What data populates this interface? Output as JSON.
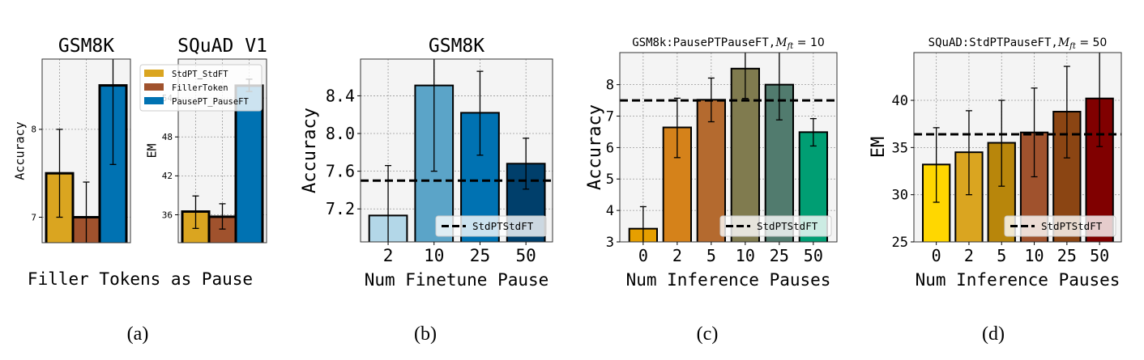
{
  "figure": {
    "panel_a_xlabel": "Filler Tokens as Pause",
    "captions": [
      "(a)",
      "(b)",
      "(c)",
      "(d)"
    ],
    "panel_a_legend": [
      {
        "label": "StdPT_StdFT",
        "color": "#DAA520"
      },
      {
        "label": "FillerToken",
        "color": "#A0522D"
      },
      {
        "label": "PausePT_PauseFT",
        "color": "#0072B2"
      }
    ]
  },
  "chart_data": [
    {
      "type": "bar",
      "title": "GSM8K",
      "ylabel": "Accuracy",
      "xlabel": "",
      "categories": [
        "StdPT_StdFT",
        "FillerToken",
        "PausePT_PauseFT"
      ],
      "show_xticks": false,
      "values": [
        7.5,
        7.0,
        8.5
      ],
      "err_low": [
        7.0,
        6.6,
        7.6
      ],
      "err_high": [
        8.0,
        7.4,
        9.4
      ],
      "ylim": [
        6.71,
        8.8
      ],
      "yticks": [
        "7",
        "8"
      ],
      "colors": [
        "#DAA520",
        "#A0522D",
        "#0072B2"
      ],
      "grid": true
    },
    {
      "type": "bar",
      "title": "SQuAD V1",
      "ylabel": "EM",
      "xlabel": "",
      "categories": [
        "StdPT_StdFT",
        "FillerToken",
        "PausePT_PauseFT"
      ],
      "show_xticks": false,
      "values": [
        36.5,
        35.7,
        55.9
      ],
      "err_low": [
        33.9,
        33.8,
        55.0
      ],
      "err_high": [
        38.9,
        37.7,
        56.9
      ],
      "ylim": [
        31.7,
        60
      ],
      "yticks": [
        "36",
        "42",
        "48",
        "54"
      ],
      "colors": [
        "#DAA520",
        "#A0522D",
        "#0072B2"
      ],
      "grid": true
    },
    {
      "type": "bar",
      "title": "GSM8K",
      "ylabel": "Accuracy",
      "xlabel": "Num Finetune Pause",
      "categories": [
        "2",
        "10",
        "25",
        "50"
      ],
      "show_xticks": true,
      "values": [
        7.13,
        8.51,
        8.22,
        7.68
      ],
      "err_low": [
        6.6,
        7.6,
        7.77,
        7.41
      ],
      "err_high": [
        7.66,
        9.4,
        8.66,
        7.95
      ],
      "ylim": [
        6.85,
        8.79
      ],
      "yticks": [
        "7.2",
        "7.6",
        "8.0",
        "8.4"
      ],
      "colors": [
        "#B3D7E8",
        "#5BA4C8",
        "#0072B2",
        "#003F6B"
      ],
      "baseline": {
        "label": "StdPTStdFT",
        "value": 7.5
      },
      "legend": "bottom-right",
      "grid": true
    },
    {
      "type": "bar",
      "title_prefix": "GSM8k:PausePTPauseFT,",
      "title_var": "M",
      "title_sub": "ft",
      "title_rest": " = 10",
      "ylabel": "Accuracy",
      "xlabel": "Num Inference Pauses",
      "categories": [
        "0",
        "2",
        "5",
        "10",
        "25",
        "50"
      ],
      "show_xticks": true,
      "values": [
        3.42,
        6.64,
        7.52,
        8.51,
        8.0,
        6.49
      ],
      "err_low": [
        2.7,
        5.68,
        6.82,
        7.56,
        6.88,
        6.05
      ],
      "err_high": [
        4.12,
        7.57,
        8.21,
        9.46,
        9.12,
        6.92
      ],
      "ylim": [
        3,
        9.02
      ],
      "yticks": [
        "3",
        "4",
        "5",
        "6",
        "7",
        "8"
      ],
      "colors": [
        "#E69F00",
        "#D5821A",
        "#B46A2F",
        "#807B4F",
        "#517B6E",
        "#009E73"
      ],
      "baseline": {
        "label": "StdPTStdFT",
        "value": 7.5
      },
      "legend": "bottom-right",
      "grid": true
    },
    {
      "type": "bar",
      "title_prefix": "SQuAD:StdPTPauseFT,",
      "title_var": "M",
      "title_sub": "ft",
      "title_rest": " = 50",
      "ylabel": "EM",
      "xlabel": "Num Inference Pauses",
      "categories": [
        "0",
        "2",
        "5",
        "10",
        "25",
        "50"
      ],
      "show_xticks": true,
      "values": [
        33.2,
        34.5,
        35.5,
        36.6,
        38.8,
        40.2
      ],
      "err_low": [
        29.2,
        30.0,
        30.9,
        31.9,
        33.9,
        35.1
      ],
      "err_high": [
        37.1,
        38.9,
        40.0,
        41.3,
        43.6,
        45.3
      ],
      "ylim": [
        25,
        45.06
      ],
      "yticks": [
        "25",
        "30",
        "35",
        "40"
      ],
      "colors": [
        "#FFD700",
        "#DAA520",
        "#B8860B",
        "#A0522D",
        "#8B4513",
        "#800000"
      ],
      "baseline": {
        "label": "StdPTStdFT",
        "value": 36.4
      },
      "legend": "bottom-right",
      "grid": true
    }
  ]
}
